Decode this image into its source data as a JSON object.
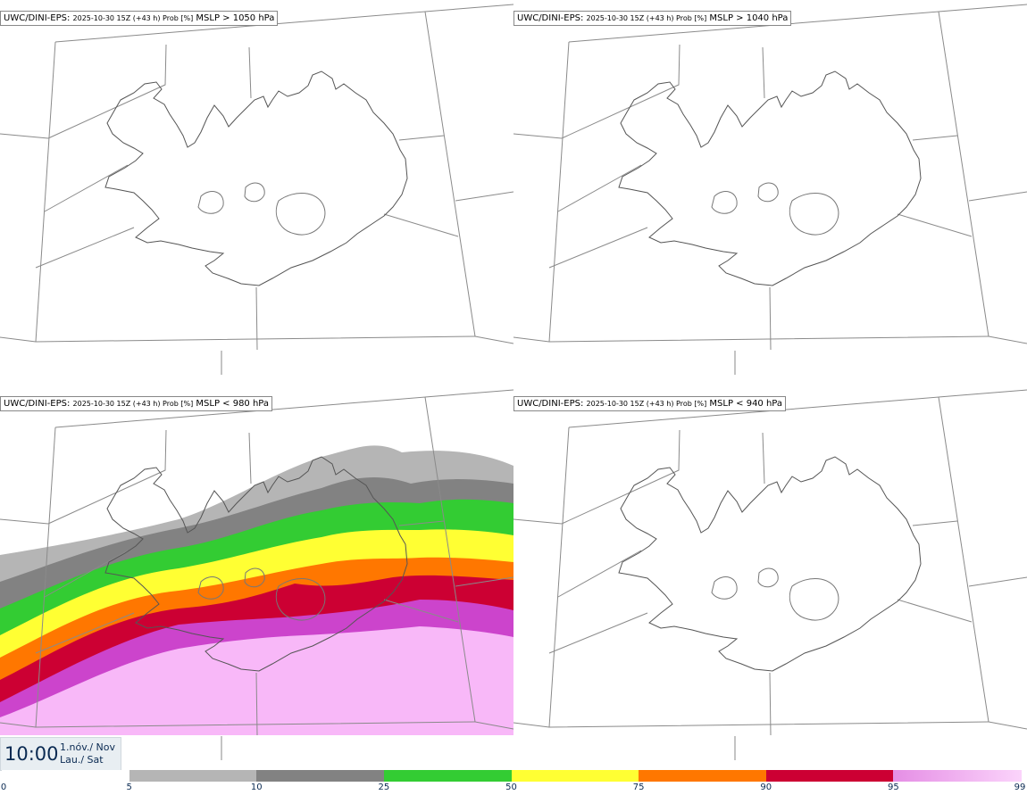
{
  "panels": [
    {
      "model": "UWC/DINI-EPS",
      "meta": "2025-10-30 15Z (+43 h) Prob [%]",
      "variable": "MSLP > 1050 hPa"
    },
    {
      "model": "UWC/DINI-EPS",
      "meta": "2025-10-30 15Z (+43 h) Prob [%]",
      "variable": "MSLP > 1040 hPa"
    },
    {
      "model": "UWC/DINI-EPS",
      "meta": "2025-10-30 15Z (+43 h) Prob [%]",
      "variable": "MSLP < 980 hPa"
    },
    {
      "model": "UWC/DINI-EPS",
      "meta": "2025-10-30 15Z (+43 h) Prob [%]",
      "variable": "MSLP < 940 hPa"
    }
  ],
  "valid_time": {
    "time": "10:00",
    "date_line1": "1.nóv./ Nov",
    "date_line2": "Lau./ Sat"
  },
  "colorbar": {
    "ticks": [
      "0",
      "5",
      "10",
      "25",
      "50",
      "75",
      "90",
      "95",
      "99"
    ],
    "colors": [
      "#ffffff",
      "#b5b5b5",
      "#828282",
      "#33cc33",
      "#ffff33",
      "#ff7700",
      "#cc0033",
      "#cc44cc",
      "#f8b8f8"
    ]
  }
}
